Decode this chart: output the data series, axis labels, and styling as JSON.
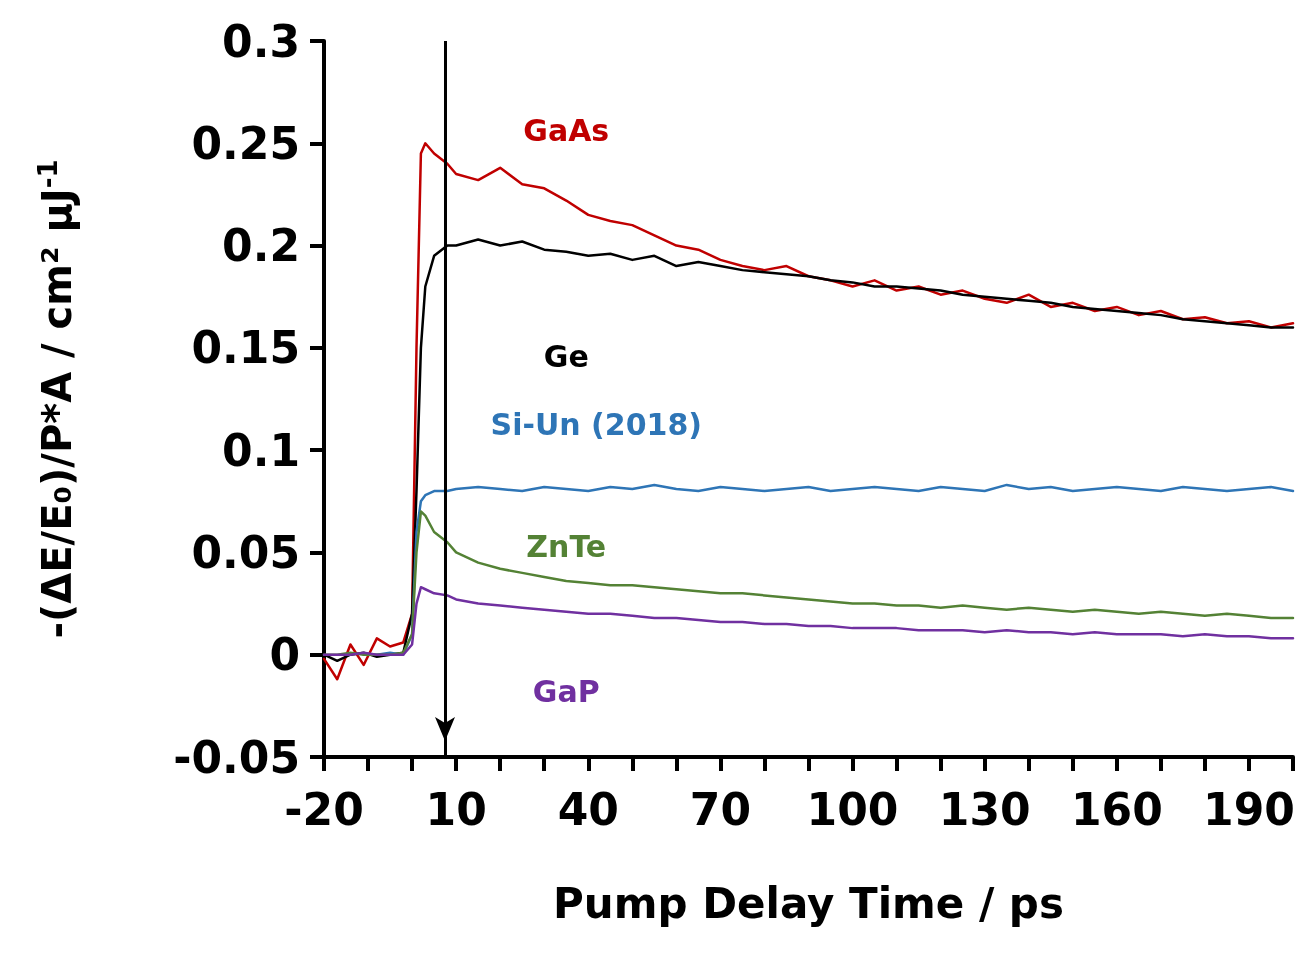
{
  "chart_data": {
    "type": "line",
    "xlabel": "Pump Delay Time / ps",
    "ylabel": "-(ΔE/E₀)/P*A / cm² μJ$^{-1}$",
    "x": [
      -20,
      -17,
      -14,
      -11,
      -8,
      -5,
      -2,
      0,
      1,
      2,
      3,
      5,
      8,
      10,
      15,
      20,
      25,
      30,
      35,
      40,
      45,
      50,
      55,
      60,
      65,
      70,
      75,
      80,
      85,
      90,
      95,
      100,
      105,
      110,
      115,
      120,
      125,
      130,
      135,
      140,
      145,
      150,
      155,
      160,
      165,
      170,
      175,
      180,
      185,
      190,
      195,
      200
    ],
    "series": [
      {
        "name": "GaAs",
        "color": "#c00000",
        "values": [
          -0.002,
          -0.012,
          0.005,
          -0.005,
          0.008,
          0.004,
          0.006,
          0.02,
          0.15,
          0.245,
          0.25,
          0.245,
          0.24,
          0.235,
          0.232,
          0.238,
          0.23,
          0.228,
          0.222,
          0.215,
          0.212,
          0.21,
          0.205,
          0.2,
          0.198,
          0.193,
          0.19,
          0.188,
          0.19,
          0.185,
          0.183,
          0.18,
          0.183,
          0.178,
          0.18,
          0.176,
          0.178,
          0.174,
          0.172,
          0.176,
          0.17,
          0.172,
          0.168,
          0.17,
          0.166,
          0.168,
          0.164,
          0.165,
          0.162,
          0.163,
          0.16,
          0.162
        ]
      },
      {
        "name": "Ge",
        "color": "#000000",
        "values": [
          0,
          -0.003,
          0,
          0.001,
          -0.001,
          0,
          0.001,
          0.02,
          0.08,
          0.15,
          0.18,
          0.195,
          0.2,
          0.2,
          0.203,
          0.2,
          0.202,
          0.198,
          0.197,
          0.195,
          0.196,
          0.193,
          0.195,
          0.19,
          0.192,
          0.19,
          0.188,
          0.187,
          0.186,
          0.185,
          0.183,
          0.182,
          0.18,
          0.18,
          0.179,
          0.178,
          0.176,
          0.175,
          0.174,
          0.173,
          0.172,
          0.17,
          0.169,
          0.168,
          0.167,
          0.166,
          0.164,
          0.163,
          0.162,
          0.161,
          0.16,
          0.16
        ]
      },
      {
        "name": "Si-Un (2018)",
        "color": "#2e75b6",
        "values": [
          null,
          null,
          null,
          0,
          0,
          0.001,
          0,
          0.01,
          0.06,
          0.075,
          0.078,
          0.08,
          0.08,
          0.081,
          0.082,
          0.081,
          0.08,
          0.082,
          0.081,
          0.08,
          0.082,
          0.081,
          0.083,
          0.081,
          0.08,
          0.082,
          0.081,
          0.08,
          0.081,
          0.082,
          0.08,
          0.081,
          0.082,
          0.081,
          0.08,
          0.082,
          0.081,
          0.08,
          0.083,
          0.081,
          0.082,
          0.08,
          0.081,
          0.082,
          0.081,
          0.08,
          0.082,
          0.081,
          0.08,
          0.081,
          0.082,
          0.08
        ]
      },
      {
        "name": "ZnTe",
        "color": "#548235",
        "values": [
          0,
          0,
          0.001,
          0,
          0,
          0,
          0.001,
          0.01,
          0.05,
          0.07,
          0.068,
          0.06,
          0.055,
          0.05,
          0.045,
          0.042,
          0.04,
          0.038,
          0.036,
          0.035,
          0.034,
          0.034,
          0.033,
          0.032,
          0.031,
          0.03,
          0.03,
          0.029,
          0.028,
          0.027,
          0.026,
          0.025,
          0.025,
          0.024,
          0.024,
          0.023,
          0.024,
          0.023,
          0.022,
          0.023,
          0.022,
          0.021,
          0.022,
          0.021,
          0.02,
          0.021,
          0.02,
          0.019,
          0.02,
          0.019,
          0.018,
          0.018
        ]
      },
      {
        "name": "GaP",
        "color": "#7030a0",
        "values": [
          0,
          0,
          0,
          0.001,
          0,
          0,
          0,
          0.005,
          0.025,
          0.033,
          0.032,
          0.03,
          0.029,
          0.027,
          0.025,
          0.024,
          0.023,
          0.022,
          0.021,
          0.02,
          0.02,
          0.019,
          0.018,
          0.018,
          0.017,
          0.016,
          0.016,
          0.015,
          0.015,
          0.014,
          0.014,
          0.013,
          0.013,
          0.013,
          0.012,
          0.012,
          0.012,
          0.011,
          0.012,
          0.011,
          0.011,
          0.01,
          0.011,
          0.01,
          0.01,
          0.01,
          0.009,
          0.01,
          0.009,
          0.009,
          0.008,
          0.008
        ]
      }
    ],
    "xlim": [
      -20,
      200
    ],
    "xticks": [
      -20,
      {
        "value": -10,
        "label": null
      },
      {
        "value": 0,
        "label": null
      },
      10,
      {
        "value": 20,
        "label": null
      },
      {
        "value": 30,
        "label": null
      },
      40,
      {
        "value": 50,
        "label": null
      },
      {
        "value": 60,
        "label": null
      },
      70,
      {
        "value": 80,
        "label": null
      },
      {
        "value": 90,
        "label": null
      },
      100,
      {
        "value": 110,
        "label": null
      },
      {
        "value": 120,
        "label": null
      },
      130,
      {
        "value": 140,
        "label": null
      },
      {
        "value": 150,
        "label": null
      },
      160,
      {
        "value": 170,
        "label": null
      },
      {
        "value": 180,
        "label": null
      },
      190,
      {
        "value": 200,
        "label": null
      }
    ],
    "ylim": [
      -0.05,
      0.3
    ],
    "yticks": [
      -0.05,
      0,
      0.05,
      0.1,
      0.15,
      0.2,
      0.25,
      0.3
    ],
    "ref_lines": [
      {
        "axis": "x",
        "value": 7.5,
        "color": "#000000",
        "line_style": "solid"
      }
    ],
    "grid": false,
    "legend": false,
    "marker": "none",
    "line_style": "solid"
  }
}
